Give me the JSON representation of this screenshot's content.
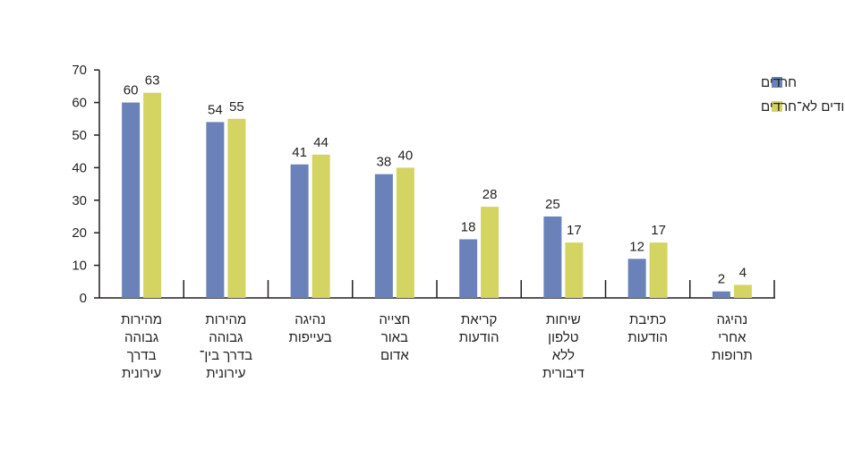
{
  "chart_data": {
    "type": "bar",
    "title": "",
    "xlabel": "",
    "ylabel": "",
    "ylim": [
      0,
      70
    ],
    "yticks": [
      0,
      10,
      20,
      30,
      40,
      50,
      60,
      70
    ],
    "grid": false,
    "legend_position": "top-right",
    "categories": [
      [
        "מהירות",
        "גבוהה",
        "בדרך",
        "עירונית"
      ],
      [
        "מהירות",
        "גבוהה",
        "בדרך בין־",
        "עירונית"
      ],
      [
        "נהיגה",
        "בעייפות"
      ],
      [
        "חצייה",
        "באור",
        "אדום"
      ],
      [
        "קריאת",
        "הודעות"
      ],
      [
        "שיחות",
        "טלפון",
        "ללא",
        "דיבורית"
      ],
      [
        "כתיבת",
        "הודעות"
      ],
      [
        "נהיגה",
        "אחרי",
        "תרופות"
      ]
    ],
    "series": [
      {
        "name": "חרדים",
        "color": "#6a82b9",
        "values": [
          60,
          54,
          41,
          38,
          18,
          25,
          12,
          2
        ]
      },
      {
        "name": "יהודים לא־חרדים",
        "color": "#d4d463",
        "values": [
          63,
          55,
          44,
          40,
          28,
          17,
          17,
          4
        ]
      }
    ]
  }
}
